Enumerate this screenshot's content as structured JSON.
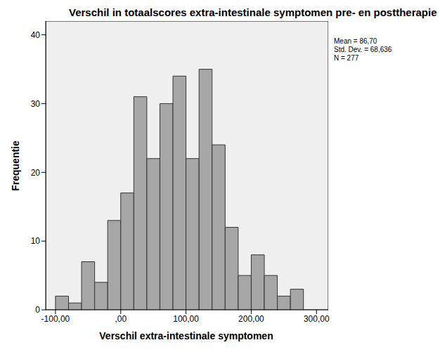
{
  "chart_data": {
    "type": "histogram",
    "title": "Verschil in totaalscores extra-intestinale symptomen pre- en posttherapie",
    "x_label": "Verschil extra-intestinale symptomen",
    "y_label": "Frequentie",
    "bins": [
      -100,
      -80,
      -60,
      -40,
      -20,
      0,
      20,
      40,
      60,
      80,
      100,
      120,
      140,
      160,
      180,
      200,
      220,
      240,
      260,
      280
    ],
    "counts": [
      2,
      1,
      7,
      4,
      13,
      17,
      31,
      22,
      30,
      34,
      22,
      35,
      24,
      12,
      5,
      8,
      5,
      2,
      3
    ],
    "color": "#a6a6a6",
    "xlim": [
      -115,
      318
    ],
    "ylim": [
      0,
      42
    ],
    "xticks": [
      {
        "value": -100,
        "label": "-100,00"
      },
      {
        "value": 0,
        "label": ",00"
      },
      {
        "value": 100,
        "label": "100,00"
      },
      {
        "value": 200,
        "label": "200,00"
      },
      {
        "value": 300,
        "label": "300,00"
      }
    ],
    "yticks": [
      0,
      10,
      20,
      30,
      40
    ],
    "annotations": [
      "Mean = 86,70",
      "Std. Dev. = 68,636",
      "N = 277"
    ],
    "grid": false
  }
}
